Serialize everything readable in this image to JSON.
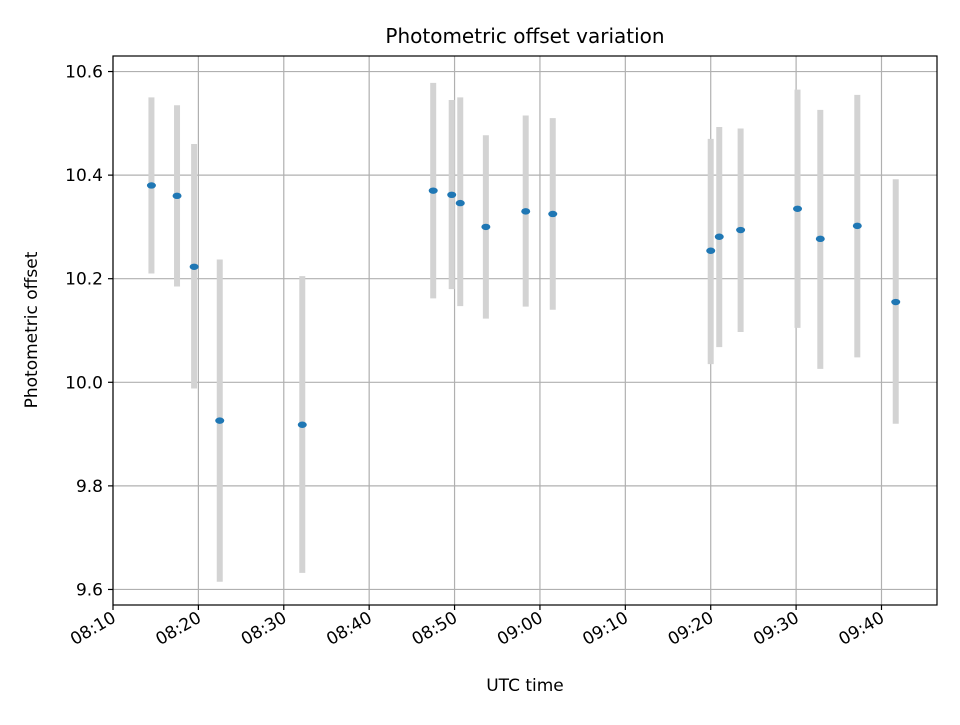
{
  "chart_data": {
    "type": "scatter",
    "title": "Photometric offset variation",
    "xlabel": "UTC time",
    "ylabel": "Photometric offset",
    "x_unit": "time (HH:MM)",
    "xlim": [
      "08:10",
      "09:46:30"
    ],
    "ylim": [
      9.57,
      10.63
    ],
    "x_ticks": [
      "08:10",
      "08:20",
      "08:30",
      "08:40",
      "08:50",
      "09:00",
      "09:10",
      "09:20",
      "09:30",
      "09:40"
    ],
    "y_ticks": [
      9.6,
      9.8,
      10.0,
      10.2,
      10.4,
      10.6
    ],
    "y_tick_labels": [
      "9.6",
      "9.8",
      "10.0",
      "10.2",
      "10.4",
      "10.6"
    ],
    "grid": true,
    "x_tick_rotation": "30 degrees",
    "series": [
      {
        "marker_color": "#1f77b4",
        "errorbar_color": "#d3d3d3",
        "points": [
          {
            "x": "08:14:30",
            "y": 10.38,
            "err_low": 10.21,
            "err_high": 10.55
          },
          {
            "x": "08:17:30",
            "y": 10.36,
            "err_low": 10.185,
            "err_high": 10.535
          },
          {
            "x": "08:19:30",
            "y": 10.223,
            "err_low": 9.988,
            "err_high": 10.46
          },
          {
            "x": "08:22:30",
            "y": 9.926,
            "err_low": 9.615,
            "err_high": 10.237
          },
          {
            "x": "08:32:10",
            "y": 9.918,
            "err_low": 9.632,
            "err_high": 10.205
          },
          {
            "x": "08:47:30",
            "y": 10.37,
            "err_low": 10.162,
            "err_high": 10.578
          },
          {
            "x": "08:49:40",
            "y": 10.362,
            "err_low": 10.18,
            "err_high": 10.545
          },
          {
            "x": "08:50:40",
            "y": 10.346,
            "err_low": 10.147,
            "err_high": 10.55
          },
          {
            "x": "08:53:40",
            "y": 10.3,
            "err_low": 10.123,
            "err_high": 10.477
          },
          {
            "x": "08:58:20",
            "y": 10.33,
            "err_low": 10.146,
            "err_high": 10.515
          },
          {
            "x": "09:01:30",
            "y": 10.325,
            "err_low": 10.14,
            "err_high": 10.51
          },
          {
            "x": "09:20:00",
            "y": 10.254,
            "err_low": 10.035,
            "err_high": 10.47
          },
          {
            "x": "09:21:00",
            "y": 10.281,
            "err_low": 10.068,
            "err_high": 10.493
          },
          {
            "x": "09:23:30",
            "y": 10.294,
            "err_low": 10.097,
            "err_high": 10.49
          },
          {
            "x": "09:30:10",
            "y": 10.335,
            "err_low": 10.105,
            "err_high": 10.565
          },
          {
            "x": "09:32:50",
            "y": 10.277,
            "err_low": 10.026,
            "err_high": 10.526
          },
          {
            "x": "09:37:10",
            "y": 10.302,
            "err_low": 10.048,
            "err_high": 10.555
          },
          {
            "x": "09:41:40",
            "y": 10.155,
            "err_low": 9.92,
            "err_high": 10.392
          }
        ]
      }
    ]
  }
}
